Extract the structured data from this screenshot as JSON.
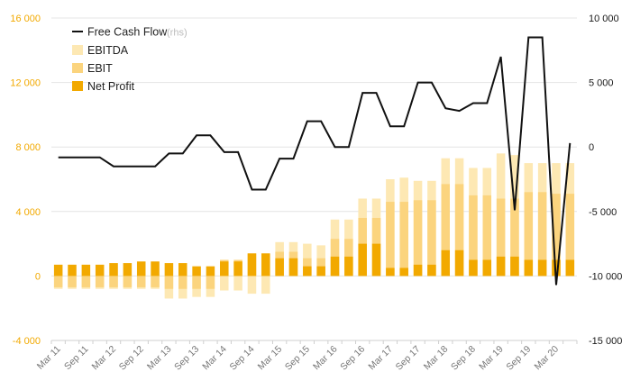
{
  "chart_data": {
    "type": "bar",
    "categories": [
      "Mar 11",
      "Jun 11",
      "Sep 11",
      "Dec 11",
      "Mar 12",
      "Jun 12",
      "Sep 12",
      "Dec 12",
      "Mar 13",
      "Jun 13",
      "Sep 13",
      "Dec 13",
      "Mar 14",
      "Jun 14",
      "Sep 14",
      "Dec 14",
      "Mar 15",
      "Jun 15",
      "Sep 15",
      "Dec 15",
      "Mar 16",
      "Jun 16",
      "Sep 16",
      "Dec 16",
      "Mar 17",
      "Jun 17",
      "Sep 17",
      "Dec 17",
      "Mar 18",
      "Jun 18",
      "Sep 18",
      "Dec 18",
      "Mar 19",
      "Jun 19",
      "Sep 19",
      "Dec 19",
      "Mar 20",
      "Jun 20"
    ],
    "x_tick_labels": [
      "Mar 11",
      "Sep 11",
      "Mar 12",
      "Sep 12",
      "Mar 13",
      "Sep 13",
      "Mar 14",
      "Sep 14",
      "Mar 15",
      "Sep 15",
      "Mar 16",
      "Sep 16",
      "Mar 17",
      "Sep 17",
      "Mar 18",
      "Sep 18",
      "Mar 19",
      "Sep 19",
      "Mar 20"
    ],
    "left_axis": {
      "ylim": [
        -4000,
        16000
      ],
      "ticks": [
        "-4 000",
        "0",
        "4 000",
        "8 000",
        "12 000",
        "16 000"
      ],
      "tick_values": [
        -4000,
        0,
        4000,
        8000,
        12000,
        16000
      ],
      "color": "#f2a900"
    },
    "right_axis": {
      "ylim": [
        -15000,
        10000
      ],
      "ticks": [
        "-15 000",
        "-10 000",
        "-5 000",
        "0",
        "5 000",
        "10 000"
      ],
      "tick_values": [
        -15000,
        -10000,
        -5000,
        0,
        5000,
        10000
      ]
    },
    "series": [
      {
        "name": "EBITDA",
        "type": "bar",
        "axis": "left",
        "color": "#fde8b3",
        "values": [
          -800,
          -800,
          -800,
          -800,
          -800,
          -800,
          -800,
          -800,
          -1400,
          -1400,
          -1300,
          -1300,
          -900,
          -900,
          -1100,
          -1100,
          2100,
          2100,
          2000,
          1900,
          3500,
          3500,
          4800,
          4800,
          6000,
          6100,
          5900,
          5900,
          7300,
          7300,
          6700,
          6700,
          7600,
          7500,
          7000,
          7000,
          7000,
          7000
        ]
      },
      {
        "name": "EBIT",
        "type": "bar",
        "axis": "left",
        "color": "#fbd47e",
        "values": [
          -700,
          -700,
          -700,
          -700,
          -700,
          -700,
          -700,
          -700,
          -800,
          -800,
          -800,
          -800,
          1000,
          1000,
          1400,
          1400,
          1500,
          1500,
          1100,
          1100,
          2300,
          2300,
          3600,
          3600,
          4600,
          4600,
          4700,
          4700,
          5700,
          5700,
          5000,
          5000,
          4800,
          4800,
          5200,
          5200,
          5100,
          5100
        ]
      },
      {
        "name": "Net Profit",
        "type": "bar",
        "axis": "left",
        "color": "#f2a900",
        "values": [
          700,
          700,
          700,
          700,
          800,
          800,
          900,
          900,
          800,
          800,
          600,
          600,
          900,
          900,
          1400,
          1400,
          1100,
          1100,
          600,
          600,
          1200,
          1200,
          2000,
          2000,
          500,
          500,
          700,
          700,
          1600,
          1600,
          1000,
          1000,
          1200,
          1200,
          1000,
          1000,
          1000,
          1000
        ]
      },
      {
        "name": "Free Cash Flow",
        "subtitle": "(rhs)",
        "type": "line",
        "axis": "right",
        "color": "#111111",
        "values": [
          -800,
          -800,
          -800,
          -800,
          -1500,
          -1500,
          -1500,
          -1500,
          -500,
          -500,
          900,
          900,
          -400,
          -400,
          -3300,
          -3300,
          -900,
          -900,
          2000,
          2000,
          0,
          0,
          4200,
          4200,
          1600,
          1600,
          5000,
          5000,
          3000,
          2800,
          3400,
          3400,
          7000,
          -4900,
          8500,
          8500,
          -10700,
          300
        ]
      }
    ],
    "grid": "horizontal",
    "legend_position": "top-left"
  }
}
